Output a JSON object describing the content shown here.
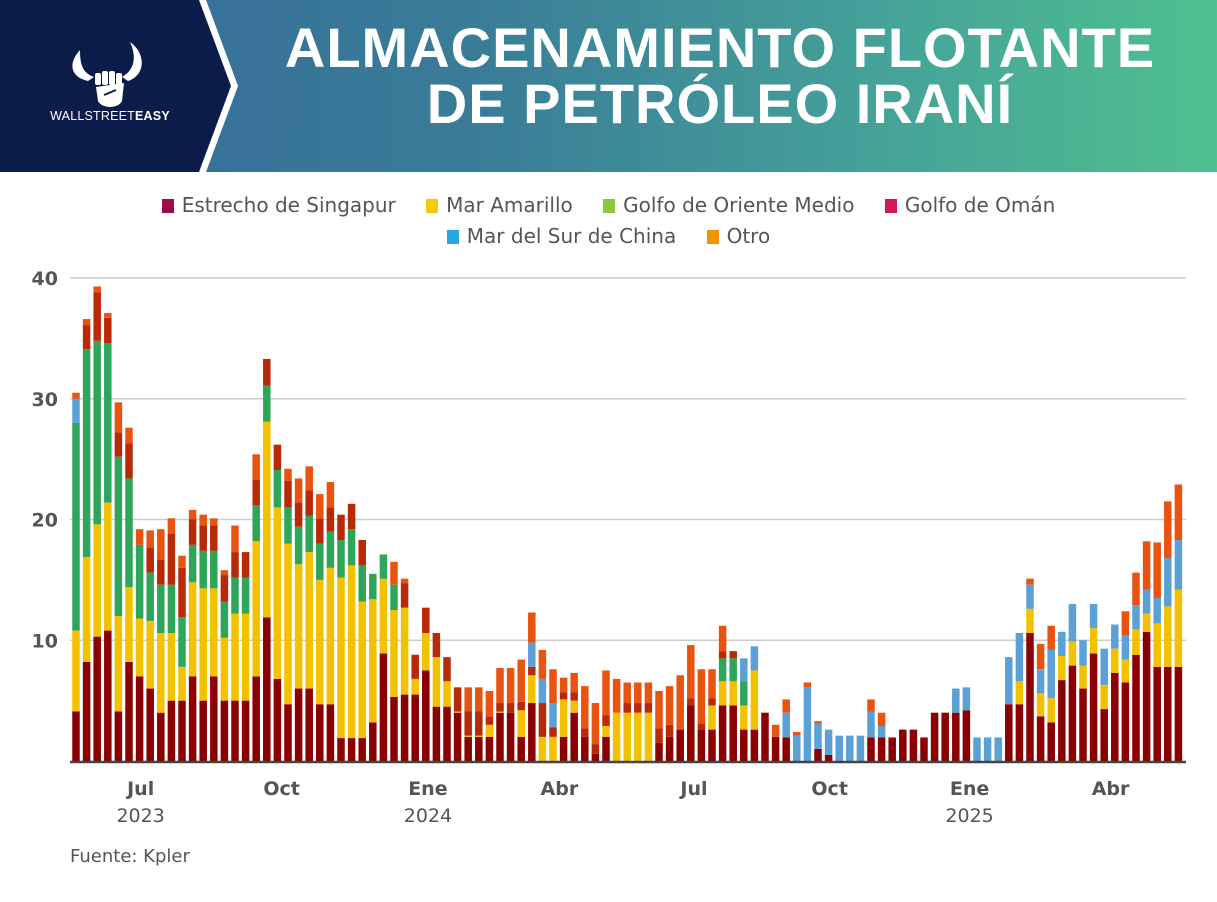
{
  "header": {
    "title_line1": "ALMACENAMIENTO FLOTANTE",
    "title_line2": "DE PETRÓLEO IRANÍ",
    "logo_text_light": "WALLSTREET",
    "logo_text_bold": "EASY"
  },
  "source": "Fuente: Kpler",
  "chart_data": {
    "type": "bar",
    "stacked": true,
    "title": "ALMACENAMIENTO FLOTANTE DE PETRÓLEO IRANÍ",
    "xlabel": "",
    "ylabel": "",
    "ylim": [
      0,
      40
    ],
    "yticks": [
      0,
      10,
      20,
      30,
      40
    ],
    "ytick_labels": [
      "",
      "10",
      "20",
      "30",
      "40"
    ],
    "grid": true,
    "legend_position": "top",
    "frequency": "weekly",
    "xticks": [
      {
        "label": "Jul",
        "year": "2023"
      },
      {
        "label": "Oct",
        "year": ""
      },
      {
        "label": "Ene",
        "year": "2024"
      },
      {
        "label": "Abr",
        "year": ""
      },
      {
        "label": "Jul",
        "year": ""
      },
      {
        "label": "Oct",
        "year": ""
      },
      {
        "label": "Ene",
        "year": "2025"
      },
      {
        "label": "Abr",
        "year": ""
      }
    ],
    "legend": [
      {
        "name": "Estrecho de Singapur",
        "color": "#9e0a4e"
      },
      {
        "name": "Mar Amarillo",
        "color": "#f2cc00"
      },
      {
        "name": "Golfo de Oriente Medio",
        "color": "#8dc63f"
      },
      {
        "name": "Golfo de Omán",
        "color": "#d1185a"
      },
      {
        "name": "Mar del Sur de China",
        "color": "#29a8e0"
      },
      {
        "name": "Otro",
        "color": "#f39200"
      }
    ],
    "series_colors": [
      "#8b0000",
      "#f2c200",
      "#2fa55a",
      "#b82a06",
      "#5ba1d6",
      "#e8540f"
    ],
    "bars": [
      [
        4.1,
        6.7,
        17.2,
        0,
        2.0,
        0.5
      ],
      [
        8.2,
        8.7,
        17.2,
        2.0,
        0,
        0.5
      ],
      [
        10.3,
        9.3,
        15.2,
        4.0,
        0,
        0.5
      ],
      [
        10.8,
        10.6,
        13.2,
        2.1,
        0,
        0.4
      ],
      [
        4.1,
        7.9,
        13.2,
        2.0,
        0,
        2.5
      ],
      [
        8.2,
        6.2,
        9.0,
        2.9,
        0,
        1.3
      ],
      [
        7,
        4.8,
        6.1,
        0,
        0,
        1.3
      ],
      [
        6,
        5.6,
        4.0,
        2.1,
        0,
        1.4
      ],
      [
        4,
        6.6,
        4.0,
        2.1,
        0,
        2.5
      ],
      [
        5,
        5.6,
        4,
        4.2,
        0,
        1.3
      ],
      [
        5,
        2.8,
        4.1,
        4.1,
        0,
        1
      ],
      [
        7,
        7.8,
        3.1,
        2.1,
        0,
        0.8
      ],
      [
        5,
        9.3,
        3.1,
        2.1,
        0,
        0.9
      ],
      [
        7,
        7.3,
        3.1,
        2.1,
        0,
        0.6
      ],
      [
        5,
        5.2,
        3,
        2.2,
        0,
        0.4
      ],
      [
        5,
        7.2,
        3,
        2.1,
        0,
        2.2
      ],
      [
        5,
        7.2,
        3,
        2.1,
        0,
        0
      ],
      [
        7,
        11.2,
        3,
        2.1,
        0,
        2.1
      ],
      [
        11.9,
        16.2,
        3,
        2.2,
        0,
        0
      ],
      [
        6.8,
        14.2,
        3.1,
        2.1,
        0,
        0
      ],
      [
        4.7,
        13.3,
        3,
        2.2,
        0,
        1
      ],
      [
        6,
        10.3,
        3.1,
        2,
        0,
        2
      ],
      [
        6,
        11.3,
        3,
        2.1,
        0,
        2
      ],
      [
        4.7,
        10.3,
        3,
        2.1,
        0,
        2
      ],
      [
        4.7,
        11.3,
        3,
        2,
        0,
        2.1
      ],
      [
        1.9,
        13.3,
        3.1,
        2.1,
        0,
        0
      ],
      [
        1.9,
        14.3,
        3,
        2.1,
        0,
        0
      ],
      [
        1.9,
        11.3,
        3,
        2.1,
        0,
        0
      ],
      [
        3.2,
        10.2,
        2.1,
        0,
        0,
        0
      ],
      [
        8.9,
        6.2,
        2,
        0,
        0,
        0
      ],
      [
        5.3,
        7.2,
        2.1,
        0,
        0,
        1.9
      ],
      [
        5.5,
        7.2,
        0,
        2,
        0,
        0.4
      ],
      [
        5.5,
        1.3,
        0,
        2,
        0,
        0
      ],
      [
        7.5,
        3.1,
        0,
        2.1,
        0,
        0
      ],
      [
        4.5,
        4.1,
        0,
        2,
        0,
        0
      ],
      [
        4.5,
        2.1,
        0,
        2,
        0,
        0
      ],
      [
        4,
        0.1,
        0,
        2,
        0,
        0
      ],
      [
        2,
        0.1,
        0,
        2,
        0,
        2
      ],
      [
        2,
        0.1,
        0,
        2,
        0,
        2
      ],
      [
        2,
        1,
        0,
        0.7,
        0,
        2.1
      ],
      [
        4,
        0.1,
        0,
        0.7,
        0,
        2.9
      ],
      [
        4,
        0,
        0,
        0.8,
        0,
        2.9
      ],
      [
        2,
        2.2,
        0,
        0.7,
        0,
        3.5
      ],
      [
        4.8,
        2.3,
        0,
        0.7,
        2,
        2.5
      ],
      [
        0,
        2,
        0,
        2.8,
        2,
        2.4
      ],
      [
        0,
        2,
        0,
        0.8,
        2,
        2.8
      ],
      [
        2,
        3.1,
        0,
        0.6,
        0,
        1.2
      ],
      [
        4,
        1,
        0,
        0.7,
        0,
        1.6
      ],
      [
        2,
        0,
        0,
        0.7,
        0,
        3.5
      ],
      [
        0.6,
        0,
        0,
        0.8,
        0,
        3.4
      ],
      [
        2,
        0.9,
        0,
        0.9,
        0,
        3.7
      ],
      [
        0,
        4,
        0,
        0,
        0,
        2.8
      ],
      [
        0,
        4,
        0,
        0.8,
        0,
        1.7
      ],
      [
        0,
        4,
        0,
        0.8,
        0,
        1.7
      ],
      [
        0,
        4,
        0,
        0.8,
        0,
        1.7
      ],
      [
        1.5,
        0,
        0,
        1.2,
        0,
        3.1
      ],
      [
        2,
        0,
        0,
        1,
        0,
        3.2
      ],
      [
        2.6,
        0,
        0,
        0,
        0,
        4.5
      ],
      [
        4.6,
        0,
        0,
        0.6,
        0,
        4.4
      ],
      [
        2.6,
        0,
        0,
        0.5,
        0,
        4.5
      ],
      [
        2.6,
        2,
        0,
        0.6,
        0,
        2.4
      ],
      [
        4.6,
        2,
        1.9,
        0.6,
        0,
        2.1
      ],
      [
        4.6,
        2,
        1.9,
        0.6,
        0,
        0
      ],
      [
        2.6,
        2,
        2,
        0,
        1.9,
        0
      ],
      [
        2.6,
        4.9,
        0,
        0,
        2,
        0
      ],
      [
        4,
        0,
        0,
        0,
        0,
        0
      ],
      [
        2,
        0,
        0,
        0,
        0,
        1
      ],
      [
        1.95,
        0,
        0,
        0,
        2.05,
        1.1
      ],
      [
        0,
        0,
        0,
        0,
        2.1,
        0.3
      ],
      [
        0,
        0,
        0,
        0,
        6.1,
        0.4
      ],
      [
        1,
        0,
        0,
        0,
        2.1,
        0.2
      ],
      [
        0.5,
        0,
        0,
        0,
        2.1,
        0
      ],
      [
        0,
        0,
        0,
        0,
        2.1,
        0
      ],
      [
        0,
        0,
        0,
        0,
        2.1,
        0
      ],
      [
        0,
        0,
        0,
        0,
        2.1,
        0
      ],
      [
        1.95,
        0,
        0,
        0,
        2.15,
        1
      ],
      [
        1.95,
        0,
        0,
        0,
        0.95,
        1.1
      ],
      [
        1.95,
        0,
        0,
        0,
        0,
        0
      ],
      [
        2.6,
        0,
        0,
        0,
        0,
        0
      ],
      [
        2.6,
        0,
        0,
        0,
        0,
        0
      ],
      [
        1.95,
        0,
        0,
        0,
        0,
        0
      ],
      [
        4,
        0,
        0,
        0,
        0,
        0
      ],
      [
        4,
        0,
        0,
        0,
        0,
        0
      ],
      [
        4,
        0,
        0,
        0,
        2,
        0
      ],
      [
        4.2,
        0,
        0,
        0,
        1.9,
        0
      ],
      [
        0,
        0,
        0,
        0,
        1.95,
        0
      ],
      [
        0,
        0,
        0,
        0,
        1.95,
        0
      ],
      [
        0,
        0,
        0,
        0,
        1.95,
        0
      ],
      [
        4.7,
        0,
        0,
        0,
        3.9,
        0
      ],
      [
        4.7,
        1.9,
        0,
        0,
        4,
        0
      ],
      [
        10.6,
        2,
        0,
        0,
        2,
        0.5
      ],
      [
        3.7,
        1.9,
        0,
        0,
        2,
        2.1
      ],
      [
        3.2,
        2,
        0,
        0,
        4,
        2
      ],
      [
        6.7,
        2,
        0,
        0,
        2,
        0
      ],
      [
        7.9,
        2,
        0,
        0,
        3.1,
        0
      ],
      [
        6,
        1.9,
        0,
        0,
        2.1,
        0
      ],
      [
        8.9,
        2.1,
        0,
        0,
        2,
        0
      ],
      [
        4.3,
        2,
        0,
        0,
        3,
        0
      ],
      [
        7.3,
        2,
        0,
        0,
        2,
        0
      ],
      [
        6.5,
        1.9,
        0,
        0,
        2,
        2
      ],
      [
        8.8,
        2.1,
        0,
        0,
        2,
        2.7
      ],
      [
        10.7,
        1.5,
        0,
        0,
        2,
        4
      ],
      [
        7.8,
        3.6,
        0,
        0,
        2.1,
        4.6
      ],
      [
        7.8,
        5,
        0,
        0,
        4,
        4.7
      ],
      [
        7.8,
        6.4,
        0,
        0,
        4.1,
        4.6
      ]
    ]
  }
}
